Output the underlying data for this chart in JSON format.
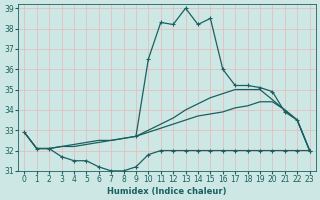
{
  "xlabel": "Humidex (Indice chaleur)",
  "ylabel": "",
  "xlim": [
    -0.5,
    23.5
  ],
  "ylim": [
    31,
    39.2
  ],
  "yticks": [
    31,
    32,
    33,
    34,
    35,
    36,
    37,
    38,
    39
  ],
  "xticks": [
    0,
    1,
    2,
    3,
    4,
    5,
    6,
    7,
    8,
    9,
    10,
    11,
    12,
    13,
    14,
    15,
    16,
    17,
    18,
    19,
    20,
    21,
    22,
    23
  ],
  "bg_color": "#cde8e4",
  "grid_color": "#e8b8b8",
  "line_color": "#1a6060",
  "lines": [
    {
      "x": [
        0,
        1,
        2,
        3,
        4,
        5,
        6,
        7,
        8,
        9,
        10,
        11,
        12,
        13,
        14,
        15,
        16,
        17,
        18,
        19,
        20,
        21,
        22,
        23
      ],
      "y": [
        32.9,
        32.1,
        32.1,
        31.7,
        31.5,
        31.5,
        31.2,
        31.0,
        31.0,
        31.2,
        31.8,
        32.0,
        32.0,
        32.0,
        32.0,
        32.0,
        32.0,
        32.0,
        32.0,
        32.0,
        32.0,
        32.0,
        32.0,
        32.0
      ],
      "has_markers": true
    },
    {
      "x": [
        0,
        1,
        2,
        3,
        4,
        5,
        6,
        7,
        8,
        9,
        10,
        11,
        12,
        13,
        14,
        15,
        16,
        17,
        18,
        19,
        20,
        21,
        22,
        23
      ],
      "y": [
        32.9,
        32.1,
        32.1,
        32.2,
        32.2,
        32.3,
        32.4,
        32.5,
        32.6,
        32.7,
        32.9,
        33.1,
        33.3,
        33.5,
        33.7,
        33.8,
        33.9,
        34.1,
        34.2,
        34.4,
        34.4,
        34.0,
        33.5,
        32.0
      ],
      "has_markers": false
    },
    {
      "x": [
        0,
        1,
        2,
        3,
        4,
        5,
        6,
        7,
        8,
        9,
        10,
        11,
        12,
        13,
        14,
        15,
        16,
        17,
        18,
        19,
        20,
        21,
        22,
        23
      ],
      "y": [
        32.9,
        32.1,
        32.1,
        32.2,
        32.3,
        32.4,
        32.5,
        32.5,
        32.6,
        32.7,
        33.0,
        33.3,
        33.6,
        34.0,
        34.3,
        34.6,
        34.8,
        35.0,
        35.0,
        35.0,
        34.5,
        34.0,
        33.5,
        32.0
      ],
      "has_markers": false
    },
    {
      "x": [
        9,
        10,
        11,
        12,
        13,
        14,
        15,
        16,
        17,
        18,
        19,
        20,
        21,
        22,
        23
      ],
      "y": [
        32.7,
        36.5,
        38.3,
        38.2,
        39.0,
        38.2,
        38.5,
        36.0,
        35.2,
        35.2,
        35.1,
        34.9,
        33.9,
        33.5,
        32.0
      ],
      "has_markers": true
    }
  ]
}
